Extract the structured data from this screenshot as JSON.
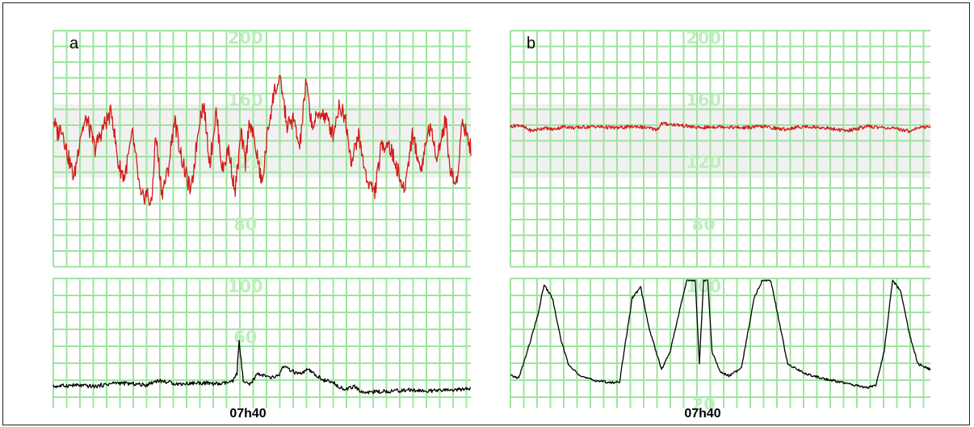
{
  "colors": {
    "grid": "#9ee49e",
    "fhr_trace": "#d41a1a",
    "toco_trace": "#000000",
    "normal_band": "#f1f1f1",
    "scale_label": "#bdf0bd"
  },
  "chart_data": [
    {
      "type": "line",
      "panel": "a",
      "fhr": {
        "scale_labels": [
          "200",
          "160",
          "120",
          "80"
        ],
        "ylim": [
          50,
          210
        ],
        "normal_band": [
          110,
          160
        ],
        "series": [
          {
            "x": [
              0,
              0.01,
              0.02,
              0.035,
              0.05,
              0.065,
              0.08,
              0.1,
              0.12,
              0.14,
              0.155,
              0.17,
              0.19,
              0.21,
              0.225,
              0.235,
              0.245,
              0.26,
              0.275,
              0.29,
              0.31,
              0.33,
              0.35,
              0.36,
              0.375,
              0.39,
              0.405,
              0.42,
              0.435,
              0.45,
              0.46,
              0.47,
              0.485,
              0.5,
              0.515,
              0.53,
              0.545,
              0.56,
              0.575,
              0.59,
              0.605,
              0.62,
              0.64,
              0.655,
              0.67,
              0.685,
              0.7,
              0.715,
              0.73,
              0.75,
              0.77,
              0.785,
              0.8,
              0.82,
              0.84,
              0.86,
              0.88,
              0.9,
              0.92,
              0.94,
              0.95,
              0.965,
              0.98,
              1.0
            ],
            "y": [
              150,
              140,
              145,
              125,
              110,
              140,
              150,
              130,
              145,
              155,
              120,
              110,
              140,
              95,
              100,
              90,
              140,
              100,
              115,
              150,
              120,
              100,
              150,
              160,
              120,
              155,
              115,
              130,
              100,
              140,
              120,
              150,
              130,
              105,
              145,
              170,
              175,
              145,
              150,
              130,
              175,
              145,
              155,
              150,
              140,
              160,
              150,
              120,
              140,
              110,
              100,
              130,
              135,
              120,
              100,
              140,
              115,
              145,
              125,
              150,
              115,
              105,
              150,
              130
            ]
          }
        ]
      },
      "toco": {
        "scale_labels": [
          "100",
          "60"
        ],
        "ylim": [
          0,
          100
        ],
        "series": [
          {
            "x": [
              0,
              0.05,
              0.1,
              0.15,
              0.2,
              0.22,
              0.25,
              0.3,
              0.35,
              0.4,
              0.43,
              0.44,
              0.445,
              0.455,
              0.47,
              0.49,
              0.52,
              0.54,
              0.55,
              0.57,
              0.59,
              0.61,
              0.63,
              0.65,
              0.67,
              0.7,
              0.72,
              0.74,
              0.8,
              0.85,
              0.9,
              0.95,
              1.0
            ],
            "y": [
              11,
              12,
              11,
              14,
              13,
              12,
              16,
              13,
              14,
              13,
              15,
              22,
              50,
              15,
              12,
              22,
              18,
              20,
              28,
              24,
              21,
              25,
              20,
              16,
              14,
              8,
              11,
              6,
              7,
              8,
              7,
              8,
              9
            ]
          }
        ]
      },
      "time_label": "07h40"
    },
    {
      "type": "line",
      "panel": "b",
      "fhr": {
        "scale_labels": [
          "200",
          "160",
          "120",
          "80"
        ],
        "ylim": [
          50,
          210
        ],
        "normal_band": [
          110,
          160
        ],
        "series": [
          {
            "x": [
              0,
              0.02,
              0.05,
              0.08,
              0.1,
              0.13,
              0.15,
              0.2,
              0.25,
              0.3,
              0.35,
              0.36,
              0.4,
              0.45,
              0.5,
              0.55,
              0.6,
              0.65,
              0.7,
              0.75,
              0.8,
              0.85,
              0.9,
              0.95,
              0.97,
              1.0
            ],
            "y": [
              145,
              146,
              142,
              144,
              143,
              145,
              144,
              145,
              144,
              145,
              143,
              147,
              146,
              144,
              145,
              144,
              145,
              143,
              145,
              144,
              142,
              145,
              144,
              142,
              144,
              145
            ]
          }
        ]
      },
      "toco": {
        "scale_labels": [
          "100",
          "20"
        ],
        "ylim": [
          0,
          100
        ],
        "series": [
          {
            "x": [
              0,
              0.02,
              0.04,
              0.065,
              0.08,
              0.1,
              0.12,
              0.14,
              0.16,
              0.18,
              0.2,
              0.225,
              0.24,
              0.26,
              0.29,
              0.31,
              0.33,
              0.36,
              0.38,
              0.4,
              0.42,
              0.44,
              0.45,
              0.46,
              0.47,
              0.48,
              0.5,
              0.52,
              0.55,
              0.58,
              0.6,
              0.62,
              0.64,
              0.66,
              0.7,
              0.74,
              0.78,
              0.82,
              0.85,
              0.87,
              0.89,
              0.91,
              0.93,
              0.95,
              0.97,
              1.0
            ],
            "y": [
              20,
              18,
              40,
              70,
              96,
              85,
              50,
              28,
              22,
              18,
              16,
              15,
              14,
              15,
              85,
              94,
              60,
              25,
              40,
              70,
              100,
              100,
              30,
              100,
              100,
              40,
              23,
              20,
              26,
              85,
              100,
              100,
              65,
              30,
              22,
              18,
              15,
              12,
              10,
              12,
              40,
              100,
              90,
              55,
              30,
              25
            ]
          }
        ]
      },
      "time_label": "07h40"
    }
  ]
}
